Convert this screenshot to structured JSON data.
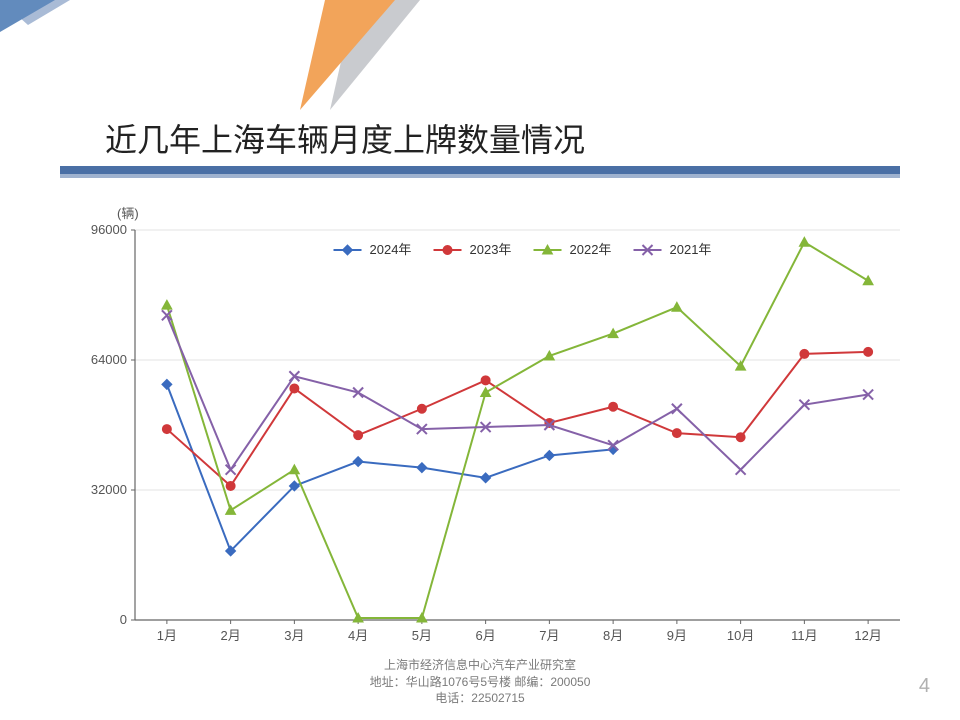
{
  "header": {
    "title": "近几年上海车辆月度上牌数量情况",
    "tri_orange": "#f2a45a",
    "tri_gray": "#c9cbcf",
    "tri_blue1": "#628bbd",
    "tri_blue2": "#a9bbd6"
  },
  "underline": {
    "main": "#4a6fa5",
    "shadow": "#9fb2cf"
  },
  "chart": {
    "type": "line",
    "y_unit": "(辆)",
    "y_ticks": [
      0,
      32000,
      64000,
      96000
    ],
    "y_tick_labels": [
      "0",
      "32000",
      "64000",
      "96000"
    ],
    "ylim": [
      0,
      96000
    ],
    "x_labels": [
      "1月",
      "2月",
      "3月",
      "4月",
      "5月",
      "6月",
      "7月",
      "8月",
      "9月",
      "10月",
      "11月",
      "12月"
    ],
    "axis_color": "#666666",
    "grid_color": "#e3e3e3",
    "background_color": "#ffffff",
    "line_width": 2,
    "marker_size": 5,
    "series": [
      {
        "name": "2024年",
        "color": "#3a6bbf",
        "marker": "diamond",
        "values": [
          58000,
          17000,
          33000,
          39000,
          37500,
          35000,
          40500,
          42000,
          null,
          null,
          null,
          null
        ]
      },
      {
        "name": "2023年",
        "color": "#d0383a",
        "marker": "circle",
        "values": [
          47000,
          33000,
          57000,
          45500,
          52000,
          59000,
          48500,
          52500,
          46000,
          45000,
          65500,
          66000
        ]
      },
      {
        "name": "2022年",
        "color": "#84b639",
        "marker": "triangle",
        "values": [
          77500,
          27000,
          37000,
          500,
          500,
          56000,
          65000,
          70500,
          77000,
          62500,
          93000,
          83500
        ]
      },
      {
        "name": "2021年",
        "color": "#8561a8",
        "marker": "x",
        "values": [
          75000,
          37000,
          60000,
          56000,
          47000,
          47500,
          48000,
          43000,
          52000,
          37000,
          53000,
          55500
        ]
      }
    ],
    "legend": {
      "y_offset": 50,
      "spacing": 100
    }
  },
  "footer": {
    "line1": "上海市经济信息中心汽车产业研究室",
    "line2": "地址：华山路1076号5号楼   邮编：200050",
    "line3": "电话：22502715"
  },
  "page_number": "4"
}
